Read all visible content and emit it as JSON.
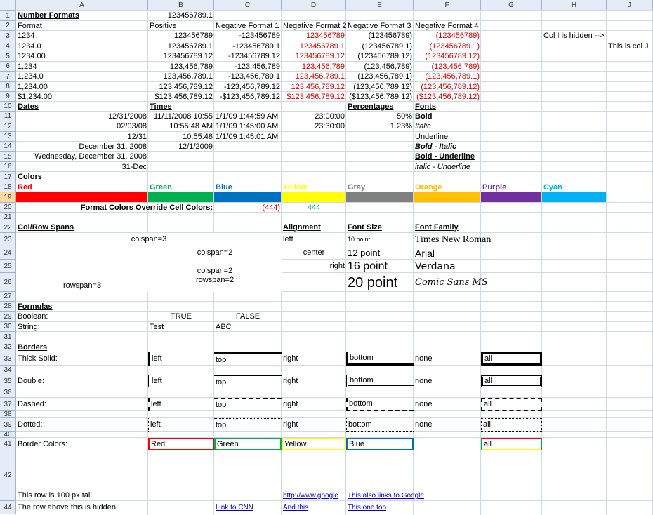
{
  "columns": [
    "A",
    "B",
    "C",
    "D",
    "E",
    "F",
    "G",
    "H",
    "J"
  ],
  "rows": [
    "1",
    "2",
    "3",
    "4",
    "5",
    "6",
    "7",
    "8",
    "9",
    "10",
    "11",
    "12",
    "13",
    "14",
    "15",
    "16",
    "17",
    "18",
    "19",
    "20",
    "21",
    "22",
    "23",
    "24",
    "25",
    "26",
    "27",
    "28",
    "29",
    "30",
    "31",
    "32",
    "33",
    "34",
    "35",
    "36",
    "37",
    "38",
    "39",
    "40",
    "41",
    "42",
    "44"
  ],
  "number_formats": {
    "title": "Number Formats",
    "top_value": "123456789.1",
    "headers": [
      "Format",
      "Positive",
      "Negative Format 1",
      "Negative Format 2",
      "Negative Format 3",
      "Negative Format 4"
    ],
    "rows": [
      [
        "1234",
        "123456789",
        "-123456789",
        "123456789",
        "(123456789)",
        "(123456789)"
      ],
      [
        "1234.0",
        "123456789.1",
        "-123456789.1",
        "123456789.1",
        "(123456789.1)",
        "(123456789.1)"
      ],
      [
        "1234.00",
        "123456789.12",
        "-123456789.12",
        "123456789.12",
        "(123456789.12)",
        "(123456789.12)"
      ],
      [
        "1,234",
        "123,456,789",
        "-123,456,789",
        "123,456,789",
        "(123,456,789)",
        "(123,456,789)"
      ],
      [
        "1,234.0",
        "123,456,789.1",
        "-123,456,789.1",
        "123,456,789.1",
        "(123,456,789.1)",
        "(123,456,789.1)"
      ],
      [
        "1,234.00",
        "123,456,789.12",
        "-123,456,789.12",
        "123,456,789.12",
        "(123,456,789.12)",
        "(123,456,789.12)"
      ],
      [
        "$1,234.00",
        "$123,456,789.12",
        "-$123,456,789.12",
        "$123,456,789.12",
        "($123,456,789.12)",
        "($123,456,789.12)"
      ]
    ],
    "hidden_note": "Col I is hidden -->",
    "col_j_note": "This is col J"
  },
  "dates": {
    "title": "Dates",
    "values": [
      "12/31/2008",
      "02/03/08",
      "12/31",
      "December 31, 2008",
      "Wednesday, December 31, 2008",
      "31-Dec"
    ]
  },
  "times": {
    "title": "Times",
    "b": [
      "11/11/2008 10:55",
      "10:55:48 AM",
      "10:55:48",
      "12/1/2009"
    ],
    "c": [
      "1/1/09 1:44:59 AM",
      "1/1/09 1:45:00 AM",
      "1/1/09 1:45:01 AM"
    ],
    "d": [
      "23:00:00",
      "23:30:00"
    ]
  },
  "percentages": {
    "title": "Percentages",
    "values": [
      "50%",
      "1.23%"
    ]
  },
  "fonts": {
    "title": "Fonts",
    "values": [
      "Bold",
      "Italic",
      "Underline",
      "Bold - Italic",
      "Bold - Underline",
      "italic - Underline"
    ]
  },
  "colors": {
    "title": "Colors",
    "items": [
      {
        "label": "Red",
        "hex": "#ff0000"
      },
      {
        "label": "Green",
        "hex": "#00b050"
      },
      {
        "label": "Blue",
        "hex": "#0070c0"
      },
      {
        "label": "Yellow",
        "hex": "#ffff00"
      },
      {
        "label": "Gray",
        "hex": "#808080"
      },
      {
        "label": "Orange",
        "hex": "#ffc000"
      },
      {
        "label": "Purple",
        "hex": "#7030a0"
      },
      {
        "label": "Cyan",
        "hex": "#00b0f0"
      }
    ],
    "override_label": "Format Colors Override Cell Colors:",
    "override_red": "(444)",
    "override_green": "444"
  },
  "spans": {
    "title": "Col/Row Spans",
    "colspan3": "colspan=3",
    "colspan2": "colspan=2",
    "colrowspan_1": "colspan=2",
    "colrowspan_2": "rowspan=2",
    "rowspan3": "rowspan=3"
  },
  "alignment": {
    "title": "Alignment",
    "left": "left",
    "center": "center",
    "right": "right"
  },
  "font_size": {
    "title": "Font Size",
    "values": [
      "10 point",
      "12 point",
      "16 point",
      "20 point"
    ]
  },
  "font_family": {
    "title": "Font Family",
    "values": [
      "Times New Roman",
      "Arial",
      "Verdana",
      "Comic Sans MS"
    ]
  },
  "formulas": {
    "title": "Formulas",
    "boolean_label": "Boolean:",
    "true": "TRUE",
    "false": "FALSE",
    "string_label": "String:",
    "s1": "Test",
    "s2": "ABC"
  },
  "borders": {
    "title": "Borders",
    "rows": [
      {
        "label": "Thick Solid:",
        "left": "left",
        "top": "top",
        "right": "right",
        "bottom": "bottom",
        "none": "none",
        "all": "all"
      },
      {
        "label": "Double:",
        "left": "left",
        "top": "top",
        "right": "right",
        "bottom": "bottom",
        "none": "none",
        "all": "all"
      },
      {
        "label": "Dashed:",
        "left": "left",
        "top": "top",
        "right": "right",
        "bottom": "bottom",
        "none": "none",
        "all": "all"
      },
      {
        "label": "Dotted:",
        "left": "left",
        "top": "top",
        "right": "right",
        "bottom": "bottom",
        "none": "none",
        "all": "all"
      }
    ],
    "colors_label": "Border Colors:",
    "color_cells": [
      "Red",
      "Green",
      "Yellow",
      "Blue"
    ],
    "all": "all"
  },
  "bottom": {
    "tall_row": "This row is 100 px tall",
    "hidden_row": "The row above this is hidden",
    "link_google": "http://www.google",
    "link_google2": "This also links to Google",
    "link_cnn": "Link to CNN",
    "and_this": "And this",
    "one_too": "This one too"
  }
}
